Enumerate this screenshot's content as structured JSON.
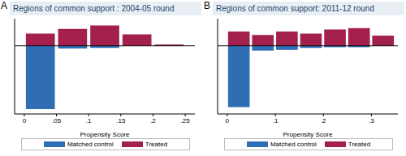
{
  "chart_data": [
    {
      "type": "bar",
      "annotations": [
        "A"
      ],
      "title": "Regions of common support : 2004-05 round",
      "x_label": "Propensity Score",
      "bins": [
        0,
        0.05,
        0.1,
        0.15,
        0.2,
        0.25
      ],
      "series": [
        {
          "name": "Matched control",
          "color": "#2f6db5",
          "values": [
            -93,
            -4,
            -3,
            0,
            0
          ]
        },
        {
          "name": "Treated",
          "color": "#a3204c",
          "values": [
            18,
            25,
            30,
            17,
            2
          ]
        }
      ],
      "stacked": true,
      "xlim": [
        -0.015,
        0.265
      ],
      "xticks": [
        0,
        {
          "value": 0.05,
          "label": ".05"
        },
        {
          "value": 0.1,
          "label": ".1"
        },
        {
          "value": 0.15,
          "label": ".15"
        },
        {
          "value": 0.2,
          "label": ".2"
        },
        {
          "value": 0.25,
          "label": ".25"
        }
      ],
      "ylim": [
        -100,
        40
      ],
      "tick_labels": "x",
      "legend": "bottom"
    },
    {
      "type": "bar",
      "annotations": [
        "B"
      ],
      "title": "Regions of common support: 2011-12 round",
      "x_label": "Propensity Score",
      "bins": [
        0,
        0.05,
        0.1,
        0.15,
        0.2,
        0.25,
        0.3,
        0.35
      ],
      "series": [
        {
          "name": "Matched control",
          "color": "#2f6db5",
          "values": [
            -90,
            -7,
            -6,
            -3,
            -2,
            -2,
            0
          ]
        },
        {
          "name": "Treated",
          "color": "#a3204c",
          "values": [
            21,
            16,
            21,
            18,
            24,
            26,
            15
          ]
        }
      ],
      "stacked": true,
      "xlim": [
        -0.02,
        0.355
      ],
      "xticks": [
        0,
        {
          "value": 0.1,
          "label": ".1"
        },
        {
          "value": 0.2,
          "label": ".2"
        },
        {
          "value": 0.3,
          "label": ".3"
        }
      ],
      "ylim": [
        -100,
        40
      ],
      "tick_labels": "x",
      "legend": "bottom"
    }
  ]
}
